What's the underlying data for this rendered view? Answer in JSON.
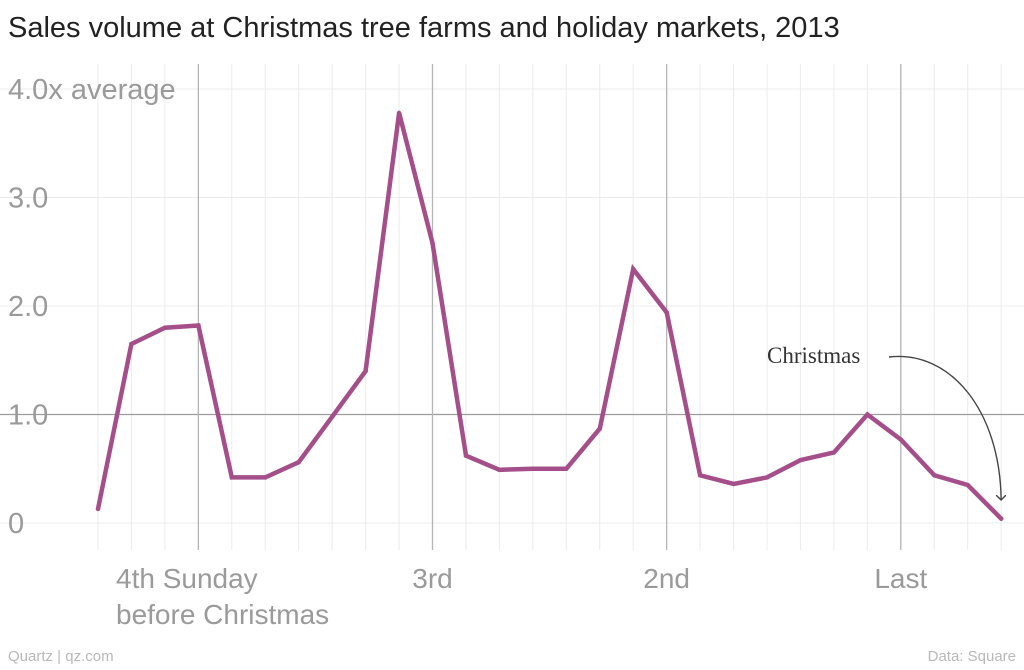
{
  "title": "Sales volume at Christmas tree farms and holiday markets, 2013",
  "footer": {
    "credit": "Quartz | qz.com",
    "source": "Data: Square"
  },
  "colors": {
    "line": "#a54f8a",
    "major_grid": "#b5b5b5",
    "minor_grid": "#ececec",
    "text": "#9a9a9a",
    "title": "#222222"
  },
  "chart_data": {
    "type": "line",
    "title": "Sales volume at Christmas tree farms and holiday markets, 2013",
    "ylim": [
      -0.25,
      4.2
    ],
    "y_ticks": [
      {
        "value": 4.0,
        "label": "4.0x average"
      },
      {
        "value": 3.0,
        "label": "3.0"
      },
      {
        "value": 2.0,
        "label": "2.0"
      },
      {
        "value": 1.0,
        "label": "1.0"
      },
      {
        "value": 0,
        "label": "0"
      }
    ],
    "x_ticks": [
      {
        "index": 3,
        "label": "4th Sunday",
        "label2": "before Christmas"
      },
      {
        "index": 10,
        "label": "3rd",
        "label2": ""
      },
      {
        "index": 17,
        "label": "2nd",
        "label2": ""
      },
      {
        "index": 24,
        "label": "Last",
        "label2": ""
      }
    ],
    "grid": true,
    "series": [
      {
        "values": [
          0.13,
          1.65,
          1.8,
          1.82,
          0.42,
          0.42,
          0.56,
          0.98,
          1.4,
          3.78,
          2.58,
          0.62,
          0.49,
          0.5,
          0.5,
          0.87,
          2.34,
          1.94,
          0.44,
          0.36,
          0.42,
          0.58,
          0.65,
          1.0,
          0.77,
          0.44,
          0.35,
          0.04
        ]
      }
    ],
    "annotation": {
      "text": "Christmas",
      "index": 27
    }
  }
}
